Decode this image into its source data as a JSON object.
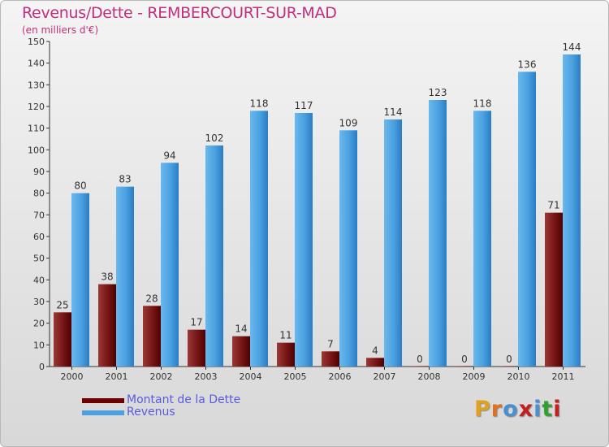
{
  "title": "Revenus/Dette - REMBERCOURT-SUR-MAD",
  "subtitle": "(en milliers d'€)",
  "legend": [
    {
      "label": "Montant de la Dette",
      "color": "#6b0000"
    },
    {
      "label": "Revenus",
      "color": "#4aa0e0"
    }
  ],
  "logo": {
    "text": "Proxiti",
    "letter_colors": [
      "#e0a020",
      "#e07020",
      "#4a90d0",
      "#c02020",
      "#4a90d0",
      "#30a030",
      "#c02020"
    ]
  },
  "chart_data": {
    "type": "bar",
    "categories": [
      "2000",
      "2001",
      "2002",
      "2003",
      "2004",
      "2005",
      "2006",
      "2007",
      "2008",
      "2009",
      "2010",
      "2011"
    ],
    "series": [
      {
        "name": "Montant de la Dette",
        "color": "#6b0000",
        "values": [
          25,
          38,
          28,
          17,
          14,
          11,
          7,
          4,
          0,
          0,
          0,
          71
        ]
      },
      {
        "name": "Revenus",
        "color": "#4aa0e0",
        "values": [
          80,
          83,
          94,
          102,
          118,
          117,
          109,
          114,
          123,
          118,
          136,
          144
        ]
      }
    ],
    "ylim": [
      0,
      150
    ],
    "yticks": [
      0,
      10,
      20,
      30,
      40,
      50,
      60,
      70,
      80,
      90,
      100,
      110,
      120,
      130,
      140,
      150
    ],
    "grid": false,
    "legend_position": "bottom-left"
  }
}
